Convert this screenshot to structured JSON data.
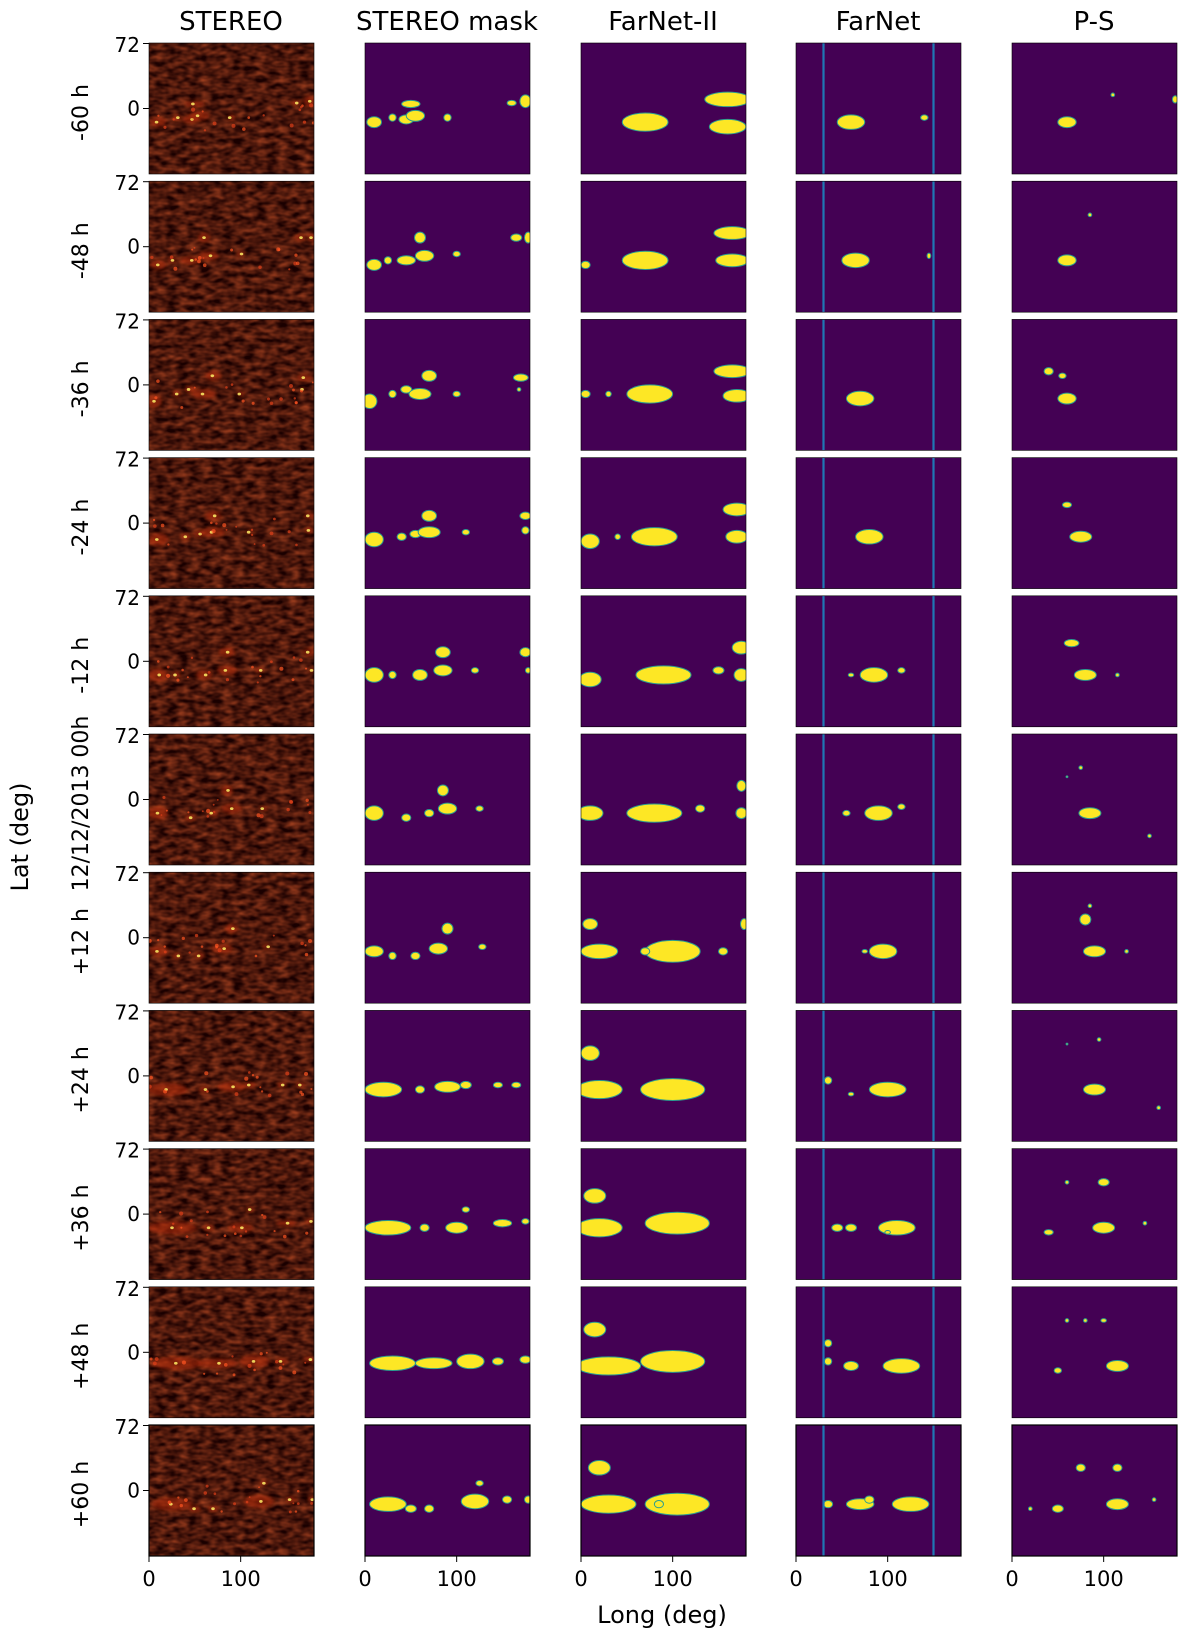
{
  "figure": {
    "column_titles": [
      "STEREO",
      "STEREO mask",
      "FarNet-II",
      "FarNet",
      "P-S"
    ],
    "row_labels": [
      "-60 h",
      "-48 h",
      "-36 h",
      "-24 h",
      "-12 h",
      "12/12/2013 00h",
      "+12 h",
      "+24 h",
      "+36 h",
      "+48 h",
      "+60 h"
    ],
    "y_axis_label": "Lat (deg)",
    "x_axis_label": "Long (deg)",
    "y_tick_labels": [
      "72",
      "0"
    ],
    "x_tick_labels": [
      "0",
      "100"
    ],
    "colors": {
      "mask_background": "#440154",
      "mask_foreground": "#fde725",
      "mask_edge": "#2a9d8f",
      "farnet_lines": "#1f77b4",
      "stereo_dark": "#1a0000",
      "stereo_bright": "#ffee66"
    }
  },
  "chart_data": {
    "type": "heatmap",
    "panel_grid": {
      "rows": 11,
      "columns": 5
    },
    "x_range_deg": [
      0,
      180
    ],
    "y_range_deg": [
      -72,
      72
    ],
    "x_ticks": [
      0,
      100
    ],
    "y_ticks": [
      72,
      0
    ],
    "farnet_vertical_lines_long_deg": [
      30,
      150
    ],
    "note_values": "each mask blob is [longitude_deg, latitude_deg, half_width_deg, half_height_deg]",
    "masks": {
      "STEREO mask": [
        [
          [
            10,
            -15,
            8,
            6
          ],
          [
            30,
            -10,
            4,
            4
          ],
          [
            45,
            -12,
            8,
            5
          ],
          [
            55,
            -8,
            10,
            6
          ],
          [
            50,
            5,
            10,
            4
          ],
          [
            90,
            -10,
            4,
            4
          ],
          [
            160,
            6,
            5,
            3
          ],
          [
            175,
            8,
            6,
            7
          ]
        ],
        [
          [
            10,
            -20,
            8,
            6
          ],
          [
            25,
            -15,
            4,
            4
          ],
          [
            45,
            -15,
            10,
            5
          ],
          [
            65,
            -10,
            10,
            6
          ],
          [
            60,
            10,
            6,
            6
          ],
          [
            100,
            -8,
            4,
            3
          ],
          [
            165,
            10,
            6,
            4
          ],
          [
            178,
            10,
            4,
            6
          ]
        ],
        [
          [
            5,
            -18,
            8,
            8
          ],
          [
            30,
            -10,
            4,
            4
          ],
          [
            45,
            -5,
            6,
            4
          ],
          [
            60,
            -10,
            12,
            6
          ],
          [
            70,
            10,
            8,
            6
          ],
          [
            100,
            -10,
            4,
            3
          ],
          [
            170,
            8,
            8,
            4
          ],
          [
            168,
            -5,
            2,
            2
          ]
        ],
        [
          [
            10,
            -18,
            10,
            8
          ],
          [
            40,
            -15,
            5,
            4
          ],
          [
            55,
            -12,
            6,
            4
          ],
          [
            70,
            -10,
            12,
            6
          ],
          [
            70,
            8,
            8,
            6
          ],
          [
            110,
            -10,
            4,
            3
          ],
          [
            175,
            8,
            6,
            4
          ],
          [
            175,
            -8,
            4,
            4
          ]
        ],
        [
          [
            10,
            -15,
            10,
            8
          ],
          [
            30,
            -15,
            4,
            4
          ],
          [
            60,
            -15,
            8,
            6
          ],
          [
            85,
            -10,
            10,
            6
          ],
          [
            85,
            10,
            8,
            6
          ],
          [
            120,
            -10,
            4,
            3
          ],
          [
            175,
            10,
            6,
            5
          ],
          [
            178,
            -10,
            3,
            3
          ]
        ],
        [
          [
            10,
            -15,
            10,
            8
          ],
          [
            45,
            -20,
            5,
            4
          ],
          [
            70,
            -15,
            5,
            4
          ],
          [
            90,
            -10,
            10,
            6
          ],
          [
            85,
            10,
            6,
            6
          ],
          [
            125,
            -10,
            4,
            3
          ]
        ],
        [
          [
            10,
            -15,
            10,
            6
          ],
          [
            30,
            -20,
            4,
            4
          ],
          [
            55,
            -20,
            5,
            4
          ],
          [
            80,
            -12,
            10,
            6
          ],
          [
            90,
            10,
            6,
            6
          ],
          [
            128,
            -10,
            4,
            3
          ]
        ],
        [
          [
            20,
            -15,
            20,
            8
          ],
          [
            60,
            -15,
            5,
            4
          ],
          [
            90,
            -12,
            14,
            6
          ],
          [
            110,
            -10,
            6,
            4
          ],
          [
            145,
            -10,
            5,
            3
          ],
          [
            165,
            -10,
            5,
            3
          ]
        ],
        [
          [
            25,
            -15,
            25,
            8
          ],
          [
            65,
            -15,
            5,
            4
          ],
          [
            100,
            -15,
            12,
            6
          ],
          [
            110,
            5,
            4,
            3
          ],
          [
            150,
            -10,
            10,
            4
          ],
          [
            175,
            -8,
            4,
            3
          ]
        ],
        [
          [
            30,
            -12,
            25,
            8
          ],
          [
            75,
            -12,
            20,
            6
          ],
          [
            115,
            -10,
            15,
            8
          ],
          [
            145,
            -10,
            6,
            4
          ],
          [
            175,
            -8,
            6,
            4
          ]
        ],
        [
          [
            25,
            -15,
            20,
            8
          ],
          [
            50,
            -20,
            6,
            4
          ],
          [
            70,
            -20,
            5,
            4
          ],
          [
            120,
            -12,
            15,
            8
          ],
          [
            125,
            8,
            4,
            3
          ],
          [
            155,
            -10,
            5,
            4
          ],
          [
            178,
            -10,
            4,
            4
          ]
        ]
      ],
      "FarNet-II": [
        [
          [
            70,
            -15,
            25,
            10
          ],
          [
            160,
            10,
            25,
            8
          ],
          [
            160,
            -20,
            20,
            8
          ]
        ],
        [
          [
            70,
            -15,
            25,
            10
          ],
          [
            165,
            15,
            20,
            7
          ],
          [
            165,
            -15,
            18,
            7
          ],
          [
            5,
            -20,
            5,
            4
          ]
        ],
        [
          [
            75,
            -10,
            25,
            10
          ],
          [
            165,
            15,
            20,
            7
          ],
          [
            170,
            -12,
            15,
            7
          ],
          [
            5,
            -10,
            5,
            4
          ],
          [
            30,
            -10,
            3,
            3
          ]
        ],
        [
          [
            80,
            -15,
            25,
            10
          ],
          [
            170,
            15,
            15,
            7
          ],
          [
            170,
            -15,
            12,
            7
          ],
          [
            10,
            -20,
            10,
            8
          ],
          [
            40,
            -15,
            3,
            3
          ]
        ],
        [
          [
            90,
            -15,
            30,
            10
          ],
          [
            150,
            -10,
            6,
            4
          ],
          [
            175,
            15,
            10,
            7
          ],
          [
            175,
            -15,
            8,
            7
          ],
          [
            10,
            -20,
            12,
            8
          ]
        ],
        [
          [
            80,
            -15,
            30,
            10
          ],
          [
            130,
            -10,
            5,
            4
          ],
          [
            175,
            -15,
            6,
            6
          ],
          [
            10,
            -15,
            14,
            8
          ],
          [
            175,
            15,
            5,
            6
          ]
        ],
        [
          [
            100,
            -15,
            30,
            12
          ],
          [
            70,
            -15,
            5,
            4
          ],
          [
            20,
            -15,
            20,
            8
          ],
          [
            10,
            15,
            8,
            6
          ],
          [
            155,
            -15,
            5,
            4
          ],
          [
            178,
            15,
            4,
            6
          ]
        ],
        [
          [
            100,
            -15,
            35,
            12
          ],
          [
            20,
            -15,
            25,
            10
          ],
          [
            10,
            25,
            10,
            8
          ]
        ],
        [
          [
            105,
            -10,
            35,
            12
          ],
          [
            20,
            -15,
            25,
            10
          ],
          [
            15,
            20,
            12,
            8
          ]
        ],
        [
          [
            100,
            -10,
            35,
            12
          ],
          [
            30,
            -15,
            35,
            10
          ],
          [
            15,
            25,
            12,
            8
          ]
        ],
        [
          [
            105,
            -15,
            35,
            12
          ],
          [
            30,
            -15,
            30,
            10
          ],
          [
            20,
            25,
            12,
            8
          ],
          [
            85,
            -15,
            5,
            4
          ]
        ]
      ],
      "FarNet": [
        [
          [
            60,
            -15,
            15,
            8
          ],
          [
            140,
            -10,
            4,
            3
          ]
        ],
        [
          [
            65,
            -15,
            15,
            8
          ],
          [
            145,
            -10,
            2,
            3
          ]
        ],
        [
          [
            70,
            -15,
            15,
            8
          ]
        ],
        [
          [
            80,
            -15,
            15,
            8
          ]
        ],
        [
          [
            85,
            -15,
            15,
            8
          ],
          [
            60,
            -15,
            3,
            2
          ],
          [
            115,
            -10,
            4,
            3
          ]
        ],
        [
          [
            90,
            -15,
            15,
            8
          ],
          [
            55,
            -15,
            4,
            3
          ],
          [
            115,
            -8,
            4,
            3
          ]
        ],
        [
          [
            95,
            -15,
            15,
            8
          ],
          [
            75,
            -15,
            3,
            2
          ]
        ],
        [
          [
            100,
            -15,
            20,
            8
          ],
          [
            35,
            -5,
            4,
            4
          ],
          [
            60,
            -20,
            3,
            2
          ]
        ],
        [
          [
            110,
            -15,
            20,
            8
          ],
          [
            45,
            -15,
            6,
            4
          ],
          [
            60,
            -15,
            6,
            4
          ],
          [
            100,
            -20,
            3,
            2
          ]
        ],
        [
          [
            115,
            -15,
            20,
            8
          ],
          [
            35,
            -10,
            4,
            4
          ],
          [
            60,
            -15,
            8,
            5
          ],
          [
            35,
            10,
            4,
            4
          ]
        ],
        [
          [
            125,
            -15,
            20,
            8
          ],
          [
            70,
            -15,
            15,
            6
          ],
          [
            35,
            -15,
            5,
            4
          ],
          [
            80,
            -10,
            5,
            4
          ]
        ]
      ],
      "P-S": [
        [
          [
            60,
            -15,
            10,
            6
          ],
          [
            110,
            15,
            2,
            2
          ],
          [
            178,
            10,
            3,
            4
          ]
        ],
        [
          [
            60,
            -15,
            10,
            6
          ],
          [
            85,
            35,
            2,
            2
          ]
        ],
        [
          [
            60,
            -15,
            10,
            6
          ],
          [
            40,
            15,
            5,
            4
          ],
          [
            55,
            10,
            4,
            3
          ]
        ],
        [
          [
            75,
            -15,
            12,
            6
          ],
          [
            60,
            20,
            5,
            3
          ]
        ],
        [
          [
            80,
            -15,
            12,
            6
          ],
          [
            65,
            20,
            8,
            4
          ],
          [
            115,
            -15,
            2,
            2
          ]
        ],
        [
          [
            85,
            -15,
            12,
            6
          ],
          [
            75,
            35,
            2,
            2
          ],
          [
            60,
            25,
            1,
            1
          ],
          [
            150,
            -40,
            2,
            2
          ]
        ],
        [
          [
            90,
            -15,
            12,
            6
          ],
          [
            80,
            20,
            6,
            6
          ],
          [
            85,
            35,
            2,
            2
          ],
          [
            125,
            -15,
            2,
            2
          ]
        ],
        [
          [
            90,
            -15,
            12,
            6
          ],
          [
            95,
            40,
            2,
            2
          ],
          [
            60,
            35,
            1,
            1
          ],
          [
            160,
            -35,
            2,
            2
          ]
        ],
        [
          [
            100,
            -15,
            12,
            6
          ],
          [
            100,
            35,
            6,
            4
          ],
          [
            60,
            35,
            2,
            2
          ],
          [
            145,
            -10,
            2,
            2
          ],
          [
            40,
            -20,
            5,
            3
          ]
        ],
        [
          [
            115,
            -15,
            12,
            6
          ],
          [
            60,
            35,
            2,
            2
          ],
          [
            80,
            35,
            2,
            2
          ],
          [
            100,
            35,
            3,
            2
          ],
          [
            50,
            -20,
            4,
            3
          ]
        ],
        [
          [
            115,
            -15,
            12,
            6
          ],
          [
            75,
            25,
            5,
            4
          ],
          [
            115,
            25,
            5,
            4
          ],
          [
            50,
            -20,
            6,
            4
          ],
          [
            20,
            -20,
            2,
            2
          ],
          [
            155,
            -10,
            2,
            2
          ]
        ]
      ]
    }
  }
}
